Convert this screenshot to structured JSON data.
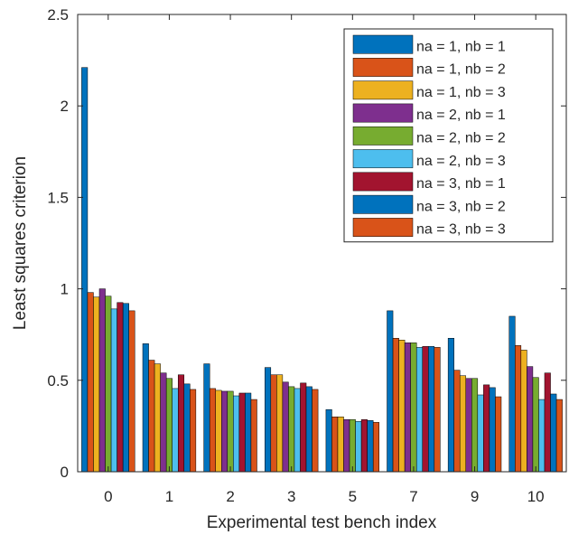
{
  "chart_data": {
    "type": "bar",
    "title": "",
    "xlabel": "Experimental test bench index",
    "ylabel": "Least squares criterion",
    "ylim": [
      0,
      2.5
    ],
    "yticks": [
      "0",
      "0.5",
      "1",
      "1.5",
      "2",
      "2.5"
    ],
    "categories": [
      "0",
      "1",
      "2",
      "3",
      "5",
      "7",
      "9",
      "10"
    ],
    "grid": false,
    "legend_position": "top-right",
    "series": [
      {
        "name": "na = 1, nb = 1",
        "color": "#0072BD",
        "values": [
          2.21,
          0.7,
          0.59,
          0.57,
          0.34,
          0.88,
          0.73,
          0.85
        ]
      },
      {
        "name": "na = 1, nb = 2",
        "color": "#D95319",
        "values": [
          0.98,
          0.61,
          0.455,
          0.53,
          0.3,
          0.73,
          0.555,
          0.69
        ]
      },
      {
        "name": "na = 1, nb = 3",
        "color": "#EDB120",
        "values": [
          0.955,
          0.59,
          0.445,
          0.53,
          0.3,
          0.72,
          0.525,
          0.665
        ]
      },
      {
        "name": "na = 2, nb = 1",
        "color": "#7E2F8E",
        "values": [
          1.0,
          0.54,
          0.44,
          0.49,
          0.285,
          0.705,
          0.51,
          0.575
        ]
      },
      {
        "name": "na = 2, nb = 2",
        "color": "#77AC30",
        "values": [
          0.96,
          0.51,
          0.44,
          0.465,
          0.285,
          0.705,
          0.51,
          0.515
        ]
      },
      {
        "name": "na = 2, nb = 3",
        "color": "#4DBEEE",
        "values": [
          0.89,
          0.455,
          0.415,
          0.455,
          0.275,
          0.68,
          0.42,
          0.395
        ]
      },
      {
        "name": "na = 3, nb = 1",
        "color": "#A2142F",
        "values": [
          0.925,
          0.53,
          0.43,
          0.485,
          0.285,
          0.685,
          0.475,
          0.54
        ]
      },
      {
        "name": "na = 3, nb = 2",
        "color": "#0072BD",
        "values": [
          0.92,
          0.48,
          0.43,
          0.465,
          0.28,
          0.685,
          0.46,
          0.425
        ]
      },
      {
        "name": "na = 3, nb = 3",
        "color": "#D95319",
        "values": [
          0.88,
          0.45,
          0.395,
          0.45,
          0.27,
          0.68,
          0.41,
          0.395
        ]
      }
    ]
  }
}
